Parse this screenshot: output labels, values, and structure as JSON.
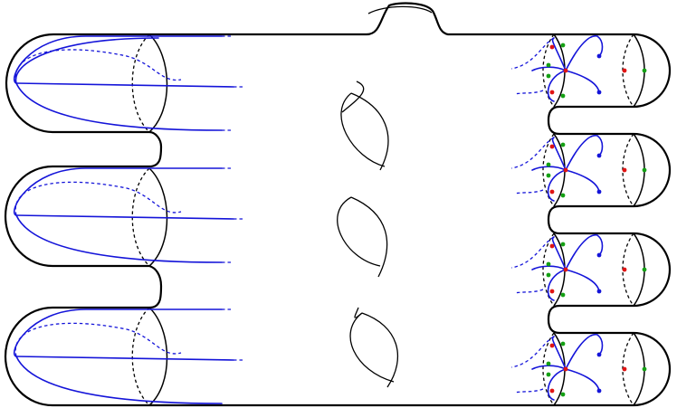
{
  "diagram": {
    "colors": {
      "outline": "#000000",
      "curves": "#1414d9",
      "marker_red": "#e01414",
      "marker_green": "#14a014"
    },
    "left_arms": 3,
    "right_tubes": 4,
    "handles": 3
  }
}
